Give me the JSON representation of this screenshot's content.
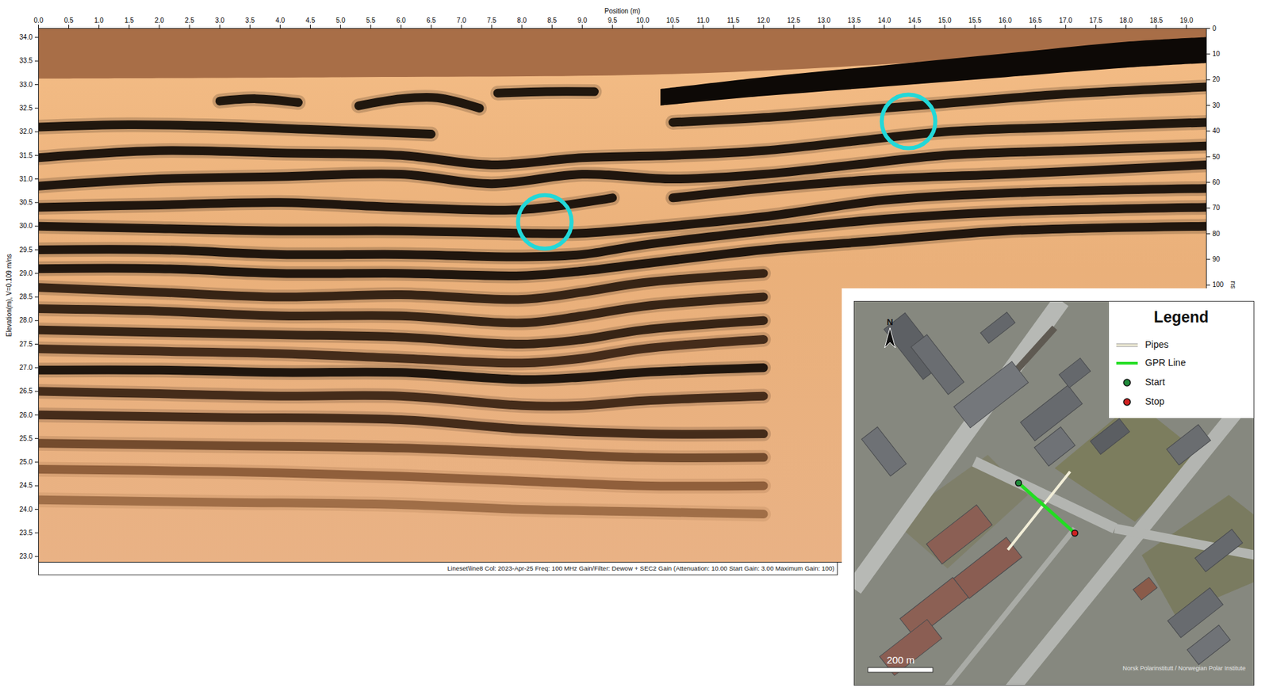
{
  "chart_data": {
    "type": "radargram",
    "x_label": "Position (m)",
    "y_label": "Elevation(m), V=0.109 m/ns",
    "y2_label": "ns",
    "caption": "Lineset\\line8  Col: 2023-Apr-25 Freq: 100 MHz Gain/Filter: Dewow + SEC2 Gain (Attenuation: 10.00 Start Gain: 3.00 Maximum Gain: 100)",
    "xlim": [
      0,
      19.33
    ],
    "ylim": [
      22.88,
      34.19
    ],
    "y2lim": [
      0,
      208
    ],
    "xticks": [
      {
        "value": 0,
        "label": "0.0"
      },
      {
        "value": 0.5,
        "label": "0.5"
      },
      {
        "value": 1,
        "label": "1.0"
      },
      {
        "value": 1.5,
        "label": "1.5"
      },
      {
        "value": 2,
        "label": "2.0"
      },
      {
        "value": 2.5,
        "label": "2.5"
      },
      {
        "value": 3,
        "label": "3.0"
      },
      {
        "value": 3.5,
        "label": "3.5"
      },
      {
        "value": 4,
        "label": "4.0"
      },
      {
        "value": 4.5,
        "label": "4.5"
      },
      {
        "value": 5,
        "label": "5.0"
      },
      {
        "value": 5.5,
        "label": "5.5"
      },
      {
        "value": 6,
        "label": "6.0"
      },
      {
        "value": 6.5,
        "label": "6.5"
      },
      {
        "value": 7,
        "label": "7.0"
      },
      {
        "value": 7.5,
        "label": "7.5"
      },
      {
        "value": 8,
        "label": "8.0"
      },
      {
        "value": 8.5,
        "label": "8.5"
      },
      {
        "value": 9,
        "label": "9.0"
      },
      {
        "value": 9.5,
        "label": "9.5"
      },
      {
        "value": 10,
        "label": "10.0"
      },
      {
        "value": 10.5,
        "label": "10.5"
      },
      {
        "value": 11,
        "label": "11.0"
      },
      {
        "value": 11.5,
        "label": "11.5"
      },
      {
        "value": 12,
        "label": "12.0"
      },
      {
        "value": 12.5,
        "label": "12.5"
      },
      {
        "value": 13,
        "label": "13.0"
      },
      {
        "value": 13.5,
        "label": "13.5"
      },
      {
        "value": 14,
        "label": "14.0"
      },
      {
        "value": 14.5,
        "label": "14.5"
      },
      {
        "value": 15,
        "label": "15.0"
      },
      {
        "value": 15.5,
        "label": "15.5"
      },
      {
        "value": 16,
        "label": "16.0"
      },
      {
        "value": 16.5,
        "label": "16.5"
      },
      {
        "value": 17,
        "label": "17.0"
      },
      {
        "value": 17.5,
        "label": "17.5"
      },
      {
        "value": 18,
        "label": "18.0"
      },
      {
        "value": 18.5,
        "label": "18.5"
      },
      {
        "value": 19,
        "label": "19.0"
      }
    ],
    "yticks": [
      {
        "value": 23,
        "label": "23.0"
      },
      {
        "value": 23.5,
        "label": "23.5"
      },
      {
        "value": 24,
        "label": "24.0"
      },
      {
        "value": 24.5,
        "label": "24.5"
      },
      {
        "value": 25,
        "label": "25.0"
      },
      {
        "value": 25.5,
        "label": "25.5"
      },
      {
        "value": 26,
        "label": "26.0"
      },
      {
        "value": 26.5,
        "label": "26.5"
      },
      {
        "value": 27,
        "label": "27.0"
      },
      {
        "value": 27.5,
        "label": "27.5"
      },
      {
        "value": 28,
        "label": "28.0"
      },
      {
        "value": 28.5,
        "label": "28.5"
      },
      {
        "value": 29,
        "label": "29.0"
      },
      {
        "value": 29.5,
        "label": "29.5"
      },
      {
        "value": 30,
        "label": "30.0"
      },
      {
        "value": 30.5,
        "label": "30.5"
      },
      {
        "value": 31,
        "label": "31.0"
      },
      {
        "value": 31.5,
        "label": "31.5"
      },
      {
        "value": 32,
        "label": "32.0"
      },
      {
        "value": 32.5,
        "label": "32.5"
      },
      {
        "value": 33,
        "label": "33.0"
      },
      {
        "value": 33.5,
        "label": "33.5"
      },
      {
        "value": 34,
        "label": "34.0"
      }
    ],
    "y2ticks": [
      0,
      10,
      20,
      30,
      40,
      50,
      60,
      70,
      80,
      90,
      100
    ],
    "bands": [
      {
        "color": "#a86e47",
        "x": [
          0,
          5,
          10,
          13,
          16,
          19.33
        ],
        "y1": [
          33.12,
          33.15,
          33.2,
          33.35,
          33.6,
          33.95
        ],
        "y2": [
          34.19,
          34.19,
          34.19,
          34.19,
          34.19,
          34.19
        ]
      },
      {
        "color": "#0d0906",
        "x": [
          10.3,
          12,
          14,
          16,
          18,
          19.33
        ],
        "y1": [
          32.55,
          32.75,
          32.95,
          33.15,
          33.35,
          33.45
        ],
        "y2": [
          32.9,
          33.15,
          33.4,
          33.65,
          33.9,
          34.0
        ]
      }
    ],
    "reflectors": [
      {
        "color": "#120c08",
        "x": [
          3.0,
          3.6,
          4.3
        ],
        "y": [
          32.65,
          32.7,
          32.62
        ]
      },
      {
        "color": "#120c08",
        "x": [
          5.3,
          6.0,
          6.6,
          7.3
        ],
        "y": [
          32.55,
          32.7,
          32.72,
          32.5
        ]
      },
      {
        "color": "#120c08",
        "x": [
          7.6,
          8.4,
          9.2
        ],
        "y": [
          32.82,
          32.85,
          32.85
        ]
      },
      {
        "color": "#120c08",
        "x": [
          0,
          1.5,
          3,
          4.5,
          6.5
        ],
        "y": [
          32.1,
          32.15,
          32.12,
          32.05,
          31.95
        ]
      },
      {
        "color": "#120c08",
        "x": [
          10.5,
          12,
          13.5,
          15,
          17,
          19.33
        ],
        "y": [
          32.2,
          32.3,
          32.45,
          32.6,
          32.8,
          32.95
        ]
      },
      {
        "color": "#120c08",
        "x": [
          0,
          2,
          4,
          6,
          7.5,
          9,
          10.5,
          12,
          13.5,
          15,
          17,
          19.33
        ],
        "y": [
          31.45,
          31.6,
          31.55,
          31.5,
          31.3,
          31.45,
          31.5,
          31.6,
          31.8,
          32.0,
          32.1,
          32.2
        ]
      },
      {
        "color": "#120c08",
        "x": [
          0,
          2,
          4,
          6,
          7.5,
          9,
          10.5,
          12,
          13.5,
          15,
          17,
          19.33
        ],
        "y": [
          30.85,
          31.0,
          31.05,
          31.1,
          30.9,
          31.1,
          31.0,
          31.1,
          31.3,
          31.5,
          31.6,
          31.7
        ]
      },
      {
        "color": "#120c08",
        "x": [
          0,
          2,
          4,
          6,
          8,
          9.5
        ],
        "y": [
          30.4,
          30.45,
          30.5,
          30.4,
          30.35,
          30.6
        ]
      },
      {
        "color": "#120c08",
        "x": [
          10.5,
          12,
          14,
          16,
          19.33
        ],
        "y": [
          30.6,
          30.8,
          31.0,
          31.1,
          31.3
        ]
      },
      {
        "color": "#120c08",
        "x": [
          0,
          2,
          4,
          6,
          8,
          9,
          10,
          12,
          14,
          16,
          19.33
        ],
        "y": [
          30.0,
          29.95,
          29.9,
          29.9,
          29.85,
          29.85,
          29.95,
          30.2,
          30.55,
          30.7,
          30.8
        ]
      },
      {
        "color": "#120c08",
        "x": [
          0,
          2,
          4,
          6,
          8,
          9,
          10,
          12,
          14,
          16,
          19.33
        ],
        "y": [
          29.5,
          29.5,
          29.4,
          29.4,
          29.35,
          29.4,
          29.6,
          29.9,
          30.15,
          30.3,
          30.4
        ]
      },
      {
        "color": "#120c08",
        "x": [
          0,
          2,
          4,
          6,
          8,
          9,
          10,
          12,
          14,
          16,
          19.33
        ],
        "y": [
          29.1,
          29.1,
          29.0,
          29.0,
          28.95,
          29.05,
          29.2,
          29.5,
          29.7,
          29.9,
          30.0
        ]
      },
      {
        "color": "#2a1a0e",
        "x": [
          0,
          2,
          4,
          6,
          8,
          9,
          10,
          12
        ],
        "y": [
          28.7,
          28.6,
          28.5,
          28.55,
          28.45,
          28.6,
          28.8,
          29.0
        ]
      },
      {
        "color": "#2a1a0e",
        "x": [
          0,
          2,
          4,
          6,
          8,
          9,
          10,
          12
        ],
        "y": [
          28.25,
          28.2,
          28.1,
          28.1,
          27.95,
          28.1,
          28.3,
          28.5
        ]
      },
      {
        "color": "#2a1a0e",
        "x": [
          0,
          2,
          4,
          6,
          8,
          9,
          10,
          12
        ],
        "y": [
          27.8,
          27.75,
          27.7,
          27.65,
          27.5,
          27.6,
          27.8,
          28.0
        ]
      },
      {
        "color": "#3a2414",
        "x": [
          0,
          2,
          4,
          6,
          8,
          9,
          10,
          12
        ],
        "y": [
          27.4,
          27.35,
          27.3,
          27.2,
          27.1,
          27.2,
          27.4,
          27.6
        ]
      },
      {
        "color": "#120c08",
        "x": [
          0,
          2,
          4,
          6,
          8,
          9,
          10,
          12
        ],
        "y": [
          26.95,
          26.95,
          26.9,
          26.9,
          26.75,
          26.8,
          26.9,
          27.0
        ]
      },
      {
        "color": "#3a2414",
        "x": [
          0,
          2,
          4,
          6,
          8,
          9,
          10,
          12
        ],
        "y": [
          26.5,
          26.45,
          26.4,
          26.4,
          26.2,
          26.2,
          26.3,
          26.4
        ]
      },
      {
        "color": "#3a2414",
        "x": [
          0,
          3,
          6,
          8,
          10,
          12
        ],
        "y": [
          26.0,
          25.95,
          25.9,
          25.7,
          25.6,
          25.6
        ]
      },
      {
        "color": "#6b4428",
        "x": [
          0,
          3,
          6,
          8,
          10,
          12
        ],
        "y": [
          25.4,
          25.35,
          25.3,
          25.2,
          25.1,
          25.1
        ]
      },
      {
        "color": "#8a5a36",
        "x": [
          0,
          3,
          6,
          8,
          10,
          12
        ],
        "y": [
          24.85,
          24.8,
          24.7,
          24.6,
          24.5,
          24.5
        ]
      },
      {
        "color": "#9a6a44",
        "x": [
          0,
          3,
          6,
          8,
          10,
          12
        ],
        "y": [
          24.2,
          24.15,
          24.1,
          24.0,
          23.95,
          23.9
        ]
      }
    ],
    "annotations": [
      {
        "x": 8.38,
        "y": 30.09,
        "color": "#22d8d8"
      },
      {
        "x": 14.4,
        "y": 32.22,
        "color": "#22d8d8"
      }
    ],
    "map": {
      "legend_title": "Legend",
      "items": [
        {
          "label": "Pipes",
          "color": "#f2eed8",
          "marker": "line"
        },
        {
          "label": "GPR Line",
          "color": "#22dd22",
          "marker": "line"
        },
        {
          "label": "Start",
          "color": "#1f8a3a",
          "marker": "circle"
        },
        {
          "label": "Stop",
          "color": "#d02020",
          "marker": "circle"
        }
      ],
      "north": "N",
      "scale_label": "200 m",
      "attribution": "Norsk Polarinstitutt / Norwegian Polar Institute"
    }
  }
}
